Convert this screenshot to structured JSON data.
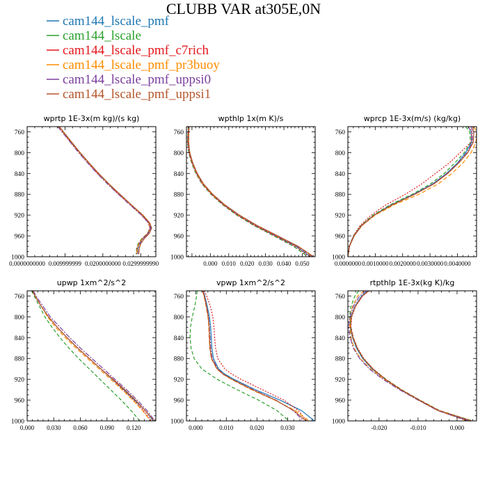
{
  "title": "CLUBB VAR at305E,0N",
  "legend": [
    {
      "label": "cam144_lscale_pmf",
      "color": "#1f77b4",
      "dash": ""
    },
    {
      "label": "cam144_lscale",
      "color": "#2ca02c",
      "dash": "5,3"
    },
    {
      "label": "cam144_lscale_pmf_c7rich",
      "color": "#e3171b",
      "dash": "2,2"
    },
    {
      "label": "cam144_lscale_pmf_pr3buoy",
      "color": "#ff8c00",
      "dash": "6,3"
    },
    {
      "label": "cam144_lscale_pmf_uppsi0",
      "color": "#7b3f9e",
      "dash": "7,2,2,2"
    },
    {
      "label": "cam144_lscale_pmf_uppsi1",
      "color": "#b5572b",
      "dash": ""
    }
  ],
  "chart_data": [
    {
      "type": "line",
      "title": "wprtp  1E-3x(m kg)/(s kg)",
      "xlim": [
        0,
        0.034
      ],
      "ylim": [
        1000,
        750
      ],
      "xticks": [
        0,
        0.01,
        0.02,
        0.03
      ],
      "xtick_labels": [
        "0.0000000000",
        "0.009999999",
        "0.0200000000",
        "0.0299999990"
      ],
      "yticks": [
        760,
        800,
        840,
        880,
        920,
        960,
        1000
      ],
      "ytick_labels": [
        "760",
        "800",
        "840",
        "880",
        "920",
        "960",
        "1000"
      ],
      "y": [
        750,
        760,
        780,
        800,
        820,
        840,
        860,
        880,
        900,
        920,
        935,
        945,
        955,
        965,
        975,
        985,
        995
      ],
      "series": [
        {
          "values": [
            0.0085,
            0.0096,
            0.0118,
            0.014,
            0.0164,
            0.0189,
            0.0216,
            0.0245,
            0.0275,
            0.0305,
            0.0323,
            0.0327,
            0.032,
            0.0306,
            0.0296,
            0.0292,
            0.0291
          ]
        },
        {
          "values": [
            0.0083,
            0.0094,
            0.0116,
            0.0138,
            0.0162,
            0.0187,
            0.0214,
            0.0243,
            0.0273,
            0.0303,
            0.0321,
            0.0325,
            0.0318,
            0.0303,
            0.0293,
            0.0289,
            0.0288
          ]
        },
        {
          "values": [
            0.0082,
            0.0093,
            0.0115,
            0.0137,
            0.0161,
            0.0186,
            0.0213,
            0.0242,
            0.0272,
            0.0302,
            0.032,
            0.0324,
            0.0318,
            0.0304,
            0.0294,
            0.029,
            0.0289
          ]
        },
        {
          "values": [
            0.0084,
            0.0095,
            0.0117,
            0.0139,
            0.0163,
            0.0188,
            0.0215,
            0.0244,
            0.0274,
            0.0304,
            0.0322,
            0.0326,
            0.0319,
            0.0305,
            0.0295,
            0.0291,
            0.029
          ]
        },
        {
          "values": [
            0.0081,
            0.0092,
            0.0114,
            0.0136,
            0.016,
            0.0185,
            0.0212,
            0.0241,
            0.0271,
            0.0302,
            0.0321,
            0.0326,
            0.032,
            0.0307,
            0.0298,
            0.0295,
            0.0294
          ]
        },
        {
          "values": [
            0.0085,
            0.0096,
            0.0118,
            0.014,
            0.0164,
            0.0189,
            0.0216,
            0.0245,
            0.0275,
            0.0306,
            0.0324,
            0.0329,
            0.0323,
            0.031,
            0.03,
            0.0296,
            0.0295
          ]
        }
      ]
    },
    {
      "type": "line",
      "title": "wpthlp  1x(m K)/s",
      "xlim": [
        -0.013,
        0.057
      ],
      "ylim": [
        1000,
        750
      ],
      "xticks": [
        0,
        0.01,
        0.02,
        0.03,
        0.04,
        0.05
      ],
      "xtick_labels": [
        "0.000",
        "0.010",
        "0.020",
        "0.030",
        "0.040",
        "0.050"
      ],
      "yticks": [
        760,
        800,
        840,
        880,
        920,
        960,
        1000
      ],
      "ytick_labels": [
        "760",
        "800",
        "840",
        "880",
        "920",
        "960",
        "1000"
      ],
      "y": [
        750,
        760,
        780,
        800,
        820,
        840,
        860,
        880,
        900,
        920,
        940,
        960,
        980,
        1000
      ],
      "series": [
        {
          "values": [
            -0.0118,
            -0.012,
            -0.0121,
            -0.0115,
            -0.0098,
            -0.0075,
            -0.0042,
            0.0008,
            0.0072,
            0.015,
            0.0245,
            0.0355,
            0.0465,
            0.0545
          ]
        },
        {
          "values": [
            -0.012,
            -0.0122,
            -0.0124,
            -0.0118,
            -0.0102,
            -0.0079,
            -0.0046,
            0.0003,
            0.0066,
            0.0143,
            0.0236,
            0.0345,
            0.0452,
            0.053
          ]
        },
        {
          "values": [
            -0.0119,
            -0.0121,
            -0.0123,
            -0.0117,
            -0.01,
            -0.0077,
            -0.0044,
            0.0005,
            0.0068,
            0.0146,
            0.024,
            0.035,
            0.046,
            0.054
          ]
        },
        {
          "values": [
            -0.0117,
            -0.0119,
            -0.012,
            -0.0114,
            -0.0097,
            -0.0074,
            -0.0041,
            0.0009,
            0.0074,
            0.0153,
            0.0249,
            0.036,
            0.0472,
            0.0555
          ]
        },
        {
          "values": [
            -0.0116,
            -0.0118,
            -0.0119,
            -0.0113,
            -0.0096,
            -0.0072,
            -0.0039,
            0.0011,
            0.0076,
            0.0155,
            0.0251,
            0.0362,
            0.0474,
            0.0558
          ]
        },
        {
          "values": [
            -0.0115,
            -0.0117,
            -0.0118,
            -0.0112,
            -0.0095,
            -0.0071,
            -0.0037,
            0.0013,
            0.0078,
            0.0158,
            0.0255,
            0.0367,
            0.0478,
            0.0562
          ]
        }
      ]
    },
    {
      "type": "line",
      "title": "wprcp  1E-3x(m/s) (kg/kg)",
      "xlim": [
        0,
        0.0047
      ],
      "ylim": [
        1000,
        750
      ],
      "xticks": [
        0,
        0.001,
        0.002,
        0.003,
        0.004
      ],
      "xtick_labels": [
        "0.0000000",
        "0.0010000",
        "0.0020000",
        "0.0030000",
        "0.0040000"
      ],
      "yticks": [
        760,
        800,
        840,
        880,
        920,
        960,
        1000
      ],
      "ytick_labels": [
        "760",
        "800",
        "840",
        "880",
        "920",
        "960",
        "1000"
      ],
      "y": [
        750,
        760,
        780,
        800,
        820,
        840,
        860,
        880,
        900,
        920,
        940,
        960,
        980,
        1000
      ],
      "series": [
        {
          "values": [
            0.0044,
            0.0045,
            0.00452,
            0.0043,
            0.004,
            0.0036,
            0.0031,
            0.0024,
            0.0016,
            0.00095,
            0.0005,
            0.00022,
            6e-05,
            0
          ]
        },
        {
          "values": [
            0.0043,
            0.00445,
            0.00448,
            0.00425,
            0.0039,
            0.00352,
            0.00302,
            0.00235,
            0.00155,
            0.00092,
            0.00048,
            0.0002,
            5e-05,
            0
          ]
        },
        {
          "values": [
            0.0044,
            0.00452,
            0.0045,
            0.0041,
            0.0037,
            0.0032,
            0.0027,
            0.0021,
            0.0014,
            0.00085,
            0.00045,
            0.0002,
            5e-05,
            0
          ]
        },
        {
          "values": [
            0.0046,
            0.0047,
            0.00468,
            0.0045,
            0.0042,
            0.0038,
            0.0033,
            0.0026,
            0.0017,
            0.001,
            0.00052,
            0.00023,
            6e-05,
            0
          ]
        },
        {
          "values": [
            0.0045,
            0.00455,
            0.00455,
            0.00435,
            0.00402,
            0.00362,
            0.00312,
            0.00242,
            0.00162,
            0.00096,
            0.0005,
            0.00022,
            6e-05,
            0
          ]
        },
        {
          "values": [
            0.00455,
            0.0046,
            0.00458,
            0.00438,
            0.00405,
            0.00365,
            0.00315,
            0.00245,
            0.00164,
            0.00097,
            0.00051,
            0.00023,
            6e-05,
            0
          ]
        }
      ]
    },
    {
      "type": "line",
      "title": "upwp  1xm^2/s^2",
      "xlim": [
        0,
        0.145
      ],
      "ylim": [
        1000,
        750
      ],
      "xticks": [
        0,
        0.03,
        0.06,
        0.09,
        0.12
      ],
      "xtick_labels": [
        "0.000",
        "0.030",
        "0.060",
        "0.090",
        "0.120"
      ],
      "yticks": [
        760,
        800,
        840,
        880,
        920,
        960,
        1000
      ],
      "ytick_labels": [
        "760",
        "800",
        "840",
        "880",
        "920",
        "960",
        "1000"
      ],
      "y": [
        750,
        760,
        780,
        800,
        820,
        840,
        860,
        880,
        900,
        920,
        940,
        960,
        980,
        1000
      ],
      "series": [
        {
          "values": [
            0.006,
            0.009,
            0.016,
            0.024,
            0.034,
            0.045,
            0.057,
            0.07,
            0.083,
            0.096,
            0.109,
            0.121,
            0.133,
            0.142
          ]
        },
        {
          "values": [
            0.005,
            0.008,
            0.014,
            0.02,
            0.028,
            0.037,
            0.047,
            0.058,
            0.07,
            0.082,
            0.094,
            0.106,
            0.117,
            0.127
          ]
        },
        {
          "values": [
            0.006,
            0.009,
            0.016,
            0.024,
            0.034,
            0.045,
            0.057,
            0.07,
            0.083,
            0.096,
            0.108,
            0.12,
            0.131,
            0.14
          ]
        },
        {
          "values": [
            0.006,
            0.009,
            0.016,
            0.023,
            0.032,
            0.043,
            0.055,
            0.068,
            0.081,
            0.094,
            0.107,
            0.119,
            0.13,
            0.139
          ]
        },
        {
          "values": [
            0.007,
            0.01,
            0.018,
            0.026,
            0.037,
            0.048,
            0.06,
            0.073,
            0.086,
            0.099,
            0.112,
            0.124,
            0.135,
            0.144
          ]
        },
        {
          "values": [
            0.006,
            0.009,
            0.016,
            0.024,
            0.034,
            0.045,
            0.057,
            0.07,
            0.083,
            0.097,
            0.11,
            0.122,
            0.133,
            0.143
          ]
        }
      ]
    },
    {
      "type": "line",
      "title": "vpwp  1xm^2/s^2",
      "xlim": [
        -0.003,
        0.039
      ],
      "ylim": [
        1000,
        750
      ],
      "xticks": [
        0,
        0.01,
        0.02,
        0.03
      ],
      "xtick_labels": [
        "0.000",
        "0.010",
        "0.020",
        "0.030"
      ],
      "yticks": [
        760,
        800,
        840,
        880,
        920,
        960,
        1000
      ],
      "ytick_labels": [
        "760",
        "800",
        "840",
        "880",
        "920",
        "960",
        "1000"
      ],
      "y": [
        750,
        760,
        780,
        800,
        820,
        840,
        860,
        880,
        900,
        910,
        920,
        940,
        960,
        980,
        1000
      ],
      "series": [
        {
          "values": [
            0.0025,
            0.003,
            0.0038,
            0.0045,
            0.0049,
            0.0051,
            0.0053,
            0.0058,
            0.0075,
            0.0095,
            0.0125,
            0.0195,
            0.0275,
            0.0345,
            0.0388
          ]
        },
        {
          "values": [
            0.0005,
            0.0003,
            -0.0003,
            -0.0011,
            -0.0017,
            -0.0018,
            -0.0015,
            -0.0005,
            0.002,
            0.0045,
            0.007,
            0.0135,
            0.0205,
            0.0265,
            0.0305
          ]
        },
        {
          "values": [
            0.0028,
            0.0036,
            0.0048,
            0.0056,
            0.006,
            0.0062,
            0.0065,
            0.0072,
            0.0095,
            0.0118,
            0.0148,
            0.0218,
            0.0288,
            0.0335,
            0.0362
          ]
        },
        {
          "values": [
            0.0022,
            0.0027,
            0.0034,
            0.004,
            0.0043,
            0.0044,
            0.0046,
            0.0051,
            0.0069,
            0.0088,
            0.0116,
            0.0182,
            0.0258,
            0.0325,
            0.037
          ]
        },
        {
          "values": [
            0.0024,
            0.0029,
            0.0036,
            0.0042,
            0.0045,
            0.0047,
            0.0049,
            0.0054,
            0.0072,
            0.0091,
            0.0119,
            0.0188,
            0.0262,
            0.0318,
            0.0352
          ]
        },
        {
          "values": [
            0.0023,
            0.0028,
            0.0035,
            0.0041,
            0.0044,
            0.0045,
            0.0047,
            0.0052,
            0.007,
            0.0089,
            0.0118,
            0.0185,
            0.026,
            0.032,
            0.036
          ]
        }
      ]
    },
    {
      "type": "line",
      "title": "rtpthlp  1E-3x(kg K)/kg",
      "xlim": [
        -0.028,
        0.005
      ],
      "ylim": [
        1000,
        750
      ],
      "xticks": [
        -0.02,
        -0.01,
        0
      ],
      "xtick_labels": [
        "-0.020",
        "-0.010",
        "0.000"
      ],
      "yticks": [
        760,
        800,
        840,
        880,
        920,
        960,
        1000
      ],
      "ytick_labels": [
        "760",
        "800",
        "840",
        "880",
        "920",
        "960",
        "1000"
      ],
      "y": [
        750,
        760,
        780,
        800,
        820,
        840,
        860,
        880,
        900,
        920,
        940,
        960,
        980,
        1000
      ],
      "series": [
        {
          "values": [
            -0.0228,
            -0.0245,
            -0.0262,
            -0.0272,
            -0.0274,
            -0.0268,
            -0.0258,
            -0.0242,
            -0.0218,
            -0.0185,
            -0.0145,
            -0.0098,
            -0.0048,
            0.003
          ]
        },
        {
          "values": [
            -0.0252,
            -0.0262,
            -0.0272,
            -0.0276,
            -0.0272,
            -0.0266,
            -0.0256,
            -0.024,
            -0.0216,
            -0.0182,
            -0.0142,
            -0.0095,
            -0.0045,
            0.004
          ]
        },
        {
          "values": [
            -0.0225,
            -0.0242,
            -0.026,
            -0.027,
            -0.0272,
            -0.0266,
            -0.0255,
            -0.0239,
            -0.0215,
            -0.0183,
            -0.0143,
            -0.0096,
            -0.0046,
            0.0035
          ]
        },
        {
          "values": [
            -0.0238,
            -0.0255,
            -0.0268,
            -0.0274,
            -0.0275,
            -0.0272,
            -0.0264,
            -0.0248,
            -0.0222,
            -0.0187,
            -0.0146,
            -0.0099,
            -0.005,
            0.0025
          ]
        },
        {
          "values": [
            -0.0232,
            -0.025,
            -0.0266,
            -0.0275,
            -0.0278,
            -0.0274,
            -0.0266,
            -0.025,
            -0.0225,
            -0.019,
            -0.0148,
            -0.01,
            -0.005,
            0.0028
          ]
        },
        {
          "values": [
            -0.0226,
            -0.0243,
            -0.0261,
            -0.0271,
            -0.0273,
            -0.0267,
            -0.0256,
            -0.024,
            -0.0216,
            -0.0184,
            -0.0144,
            -0.0097,
            -0.0047,
            0.0038
          ]
        }
      ]
    }
  ]
}
